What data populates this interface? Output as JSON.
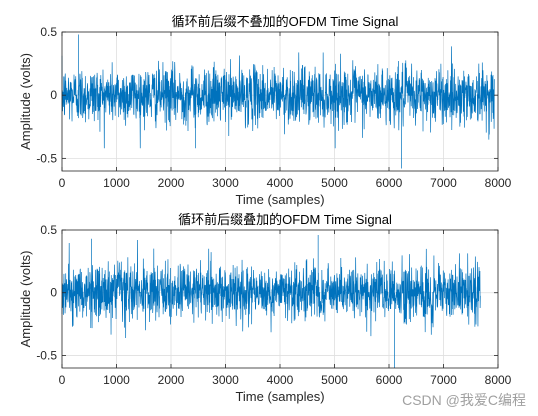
{
  "chart_data": [
    {
      "type": "line",
      "title": "循环前后缀不叠加的OFDM Time Signal",
      "xlabel": "Time (samples)",
      "ylabel": "Amplitude (volts)",
      "xlim": [
        0,
        8000
      ],
      "ylim": [
        -0.6,
        0.5
      ],
      "xticks": [
        "0",
        "1000",
        "2000",
        "3000",
        "4000",
        "5000",
        "6000",
        "7000",
        "8000"
      ],
      "yticks": [
        "-0.5",
        "0",
        "0.5"
      ],
      "grid": true,
      "signal_length": 7936,
      "amplitude_typical": 0.15,
      "peaks": [
        {
          "x": 6230,
          "y": -0.58
        },
        {
          "x": 300,
          "y": 0.48
        },
        {
          "x": 2450,
          "y": -0.42
        }
      ],
      "series": [
        {
          "color": "#0072BD"
        }
      ]
    },
    {
      "type": "line",
      "title": "循环前后缀叠加的OFDM Time Signal",
      "xlabel": "Time (samples)",
      "ylabel": "Amplitude (volts)",
      "xlim": [
        0,
        8000
      ],
      "ylim": [
        -0.6,
        0.5
      ],
      "xticks": [
        "0",
        "1000",
        "2000",
        "3000",
        "4000",
        "5000",
        "6000",
        "7000",
        "8000"
      ],
      "yticks": [
        "-0.5",
        "0",
        "0.5"
      ],
      "grid": true,
      "signal_length": 7680,
      "amplitude_typical": 0.15,
      "peaks": [
        {
          "x": 6100,
          "y": -0.6
        },
        {
          "x": 540,
          "y": 0.43
        },
        {
          "x": 4700,
          "y": 0.46
        }
      ],
      "series": [
        {
          "color": "#0072BD"
        }
      ]
    }
  ],
  "watermark": "CSDN @我爱C编程"
}
